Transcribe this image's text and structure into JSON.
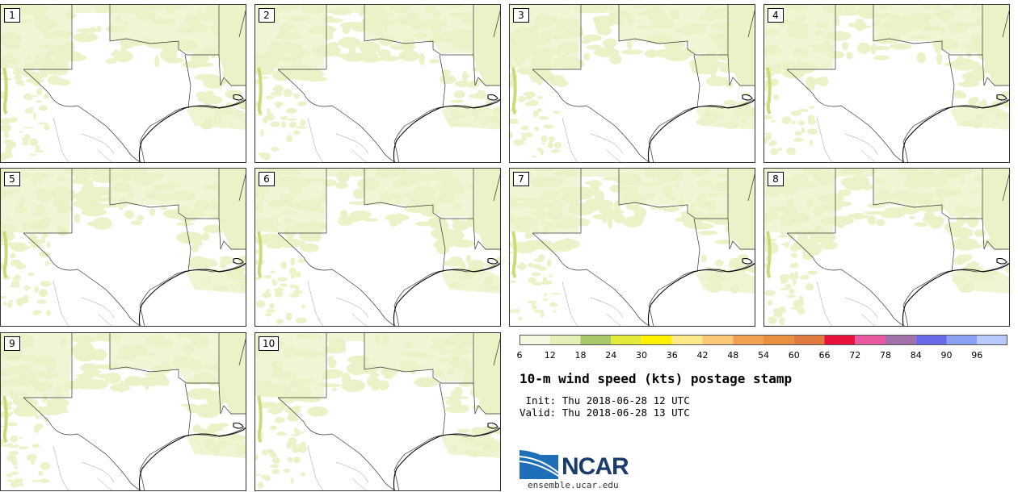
{
  "figure": {
    "title": "10-m wind speed (kts) postage stamp",
    "init": " Init: Thu 2018-06-28 12 UTC",
    "valid": "Valid: Thu 2018-06-28 13 UTC",
    "logo_text": "NCAR",
    "logo_url": "ensemble.ucar.edu"
  },
  "members": [
    {
      "label": "1"
    },
    {
      "label": "2"
    },
    {
      "label": "3"
    },
    {
      "label": "4"
    },
    {
      "label": "5"
    },
    {
      "label": "6"
    },
    {
      "label": "7"
    },
    {
      "label": "8"
    },
    {
      "label": "9"
    },
    {
      "label": "10"
    }
  ],
  "colorbar": {
    "ticks": [
      "6",
      "12",
      "18",
      "24",
      "30",
      "36",
      "42",
      "48",
      "54",
      "60",
      "66",
      "72",
      "78",
      "84",
      "90",
      "96"
    ],
    "colors": [
      "#f4f8e0",
      "#e5f0b8",
      "#a8c86a",
      "#e3ea3a",
      "#fff200",
      "#fde88a",
      "#f8c878",
      "#f0a050",
      "#e89040",
      "#e07a40",
      "#e8103c",
      "#e85aa0",
      "#a070a8",
      "#6a6ae8",
      "#8aa0f0",
      "#b8c8f8"
    ]
  },
  "map_colors": {
    "light_wind": "#eaf3c8",
    "medium_wind": "#c8dd7a",
    "boundary": "#333333",
    "county": "#999999"
  }
}
